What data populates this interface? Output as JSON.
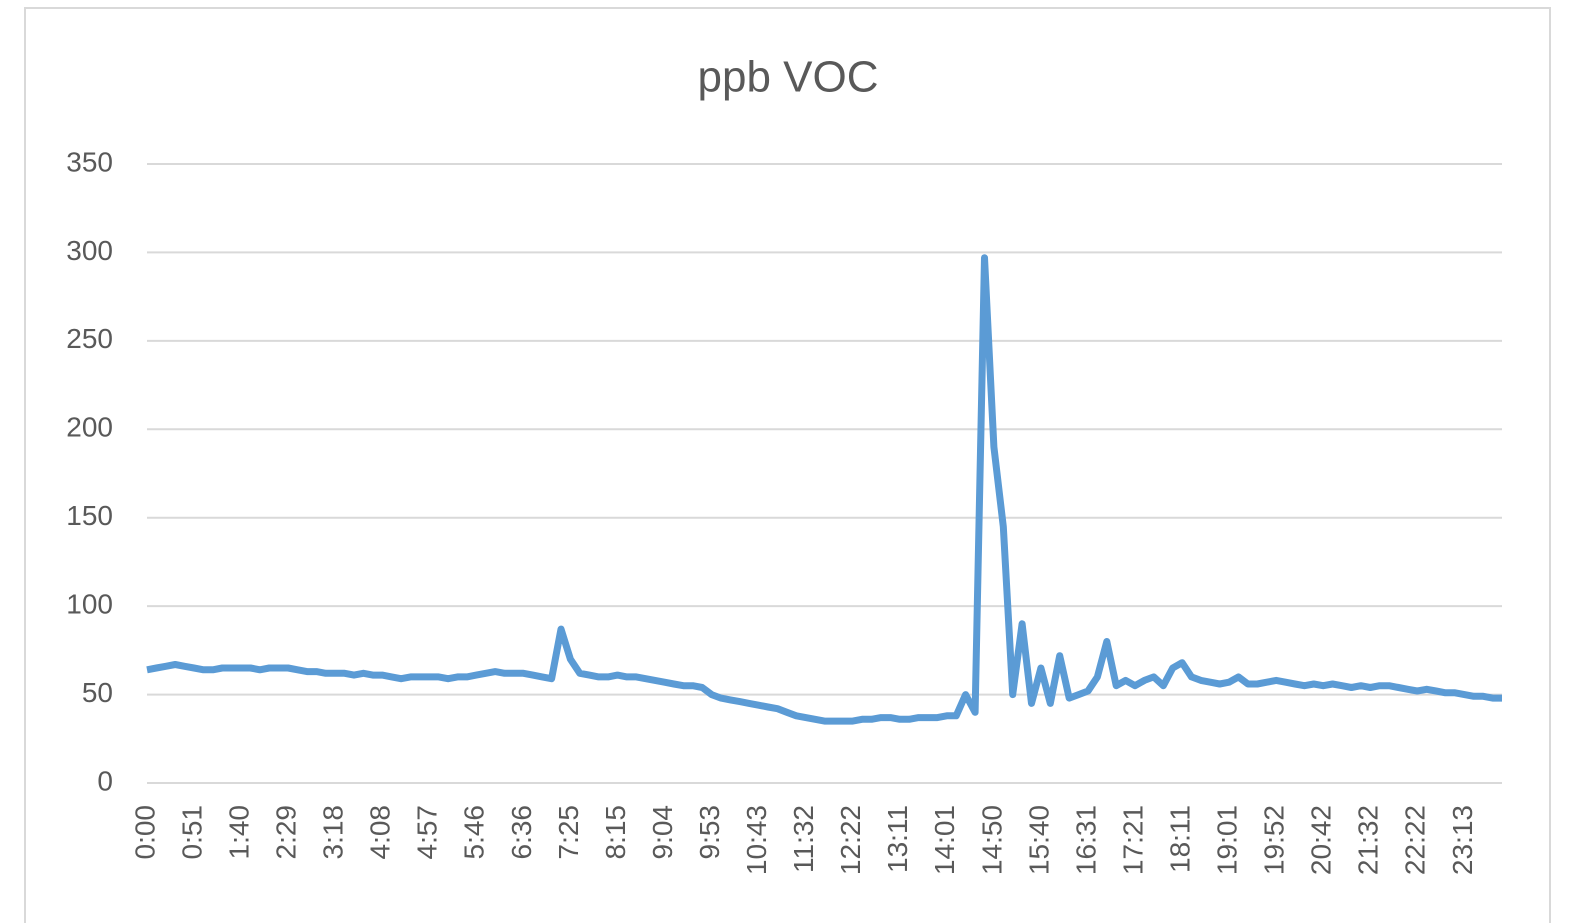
{
  "chart_data": {
    "type": "line",
    "title": "ppb VOC",
    "categories": [
      "0:00",
      null,
      null,
      null,
      null,
      "0:51",
      null,
      null,
      null,
      null,
      "1:40",
      null,
      null,
      null,
      null,
      "2:29",
      null,
      null,
      null,
      null,
      "3:18",
      null,
      null,
      null,
      null,
      "4:08",
      null,
      null,
      null,
      null,
      "4:57",
      null,
      null,
      null,
      null,
      "5:46",
      null,
      null,
      null,
      null,
      "6:36",
      null,
      null,
      null,
      null,
      "7:25",
      null,
      null,
      null,
      null,
      "8:15",
      null,
      null,
      null,
      null,
      "9:04",
      null,
      null,
      null,
      null,
      "9:53",
      null,
      null,
      null,
      null,
      "10:43",
      null,
      null,
      null,
      null,
      "11:32",
      null,
      null,
      null,
      null,
      "12:22",
      null,
      null,
      null,
      null,
      "13:11",
      null,
      null,
      null,
      null,
      "14:01",
      null,
      null,
      null,
      null,
      "14:50",
      null,
      null,
      null,
      null,
      "15:40",
      null,
      null,
      null,
      null,
      "16:31",
      null,
      null,
      null,
      null,
      "17:21",
      null,
      null,
      null,
      null,
      "18:11",
      null,
      null,
      null,
      null,
      "19:01",
      null,
      null,
      null,
      null,
      "19:52",
      null,
      null,
      null,
      null,
      "20:42",
      null,
      null,
      null,
      null,
      "21:32",
      null,
      null,
      null,
      null,
      "22:22",
      null,
      null,
      null,
      null,
      "23:13",
      null,
      null,
      null,
      null
    ],
    "series": [
      {
        "name": "ppb VOC",
        "color": "#5b9bd5",
        "values": [
          64,
          65,
          66,
          67,
          66,
          65,
          64,
          64,
          65,
          65,
          65,
          65,
          64,
          65,
          65,
          65,
          64,
          63,
          63,
          62,
          62,
          62,
          61,
          62,
          61,
          61,
          60,
          59,
          60,
          60,
          60,
          60,
          59,
          60,
          60,
          61,
          62,
          63,
          62,
          62,
          62,
          61,
          60,
          59,
          87,
          70,
          62,
          61,
          60,
          60,
          61,
          60,
          60,
          59,
          58,
          57,
          56,
          55,
          55,
          54,
          50,
          48,
          47,
          46,
          45,
          44,
          43,
          42,
          40,
          38,
          37,
          36,
          35,
          35,
          35,
          35,
          36,
          36,
          37,
          37,
          36,
          36,
          37,
          37,
          37,
          38,
          38,
          50,
          40,
          297,
          190,
          145,
          50,
          90,
          45,
          65,
          45,
          72,
          48,
          50,
          52,
          60,
          80,
          55,
          58,
          55,
          58,
          60,
          55,
          65,
          68,
          60,
          58,
          57,
          56,
          57,
          60,
          56,
          56,
          57,
          58,
          57,
          56,
          55,
          56,
          55,
          56,
          55,
          54,
          55,
          54,
          55,
          55,
          54,
          53,
          52,
          53,
          52,
          51,
          51,
          50,
          49,
          49,
          48,
          48
        ]
      }
    ],
    "ylim": [
      0,
      350
    ],
    "yticks": [
      0,
      50,
      100,
      150,
      200,
      250,
      300,
      350
    ],
    "grid": true
  }
}
